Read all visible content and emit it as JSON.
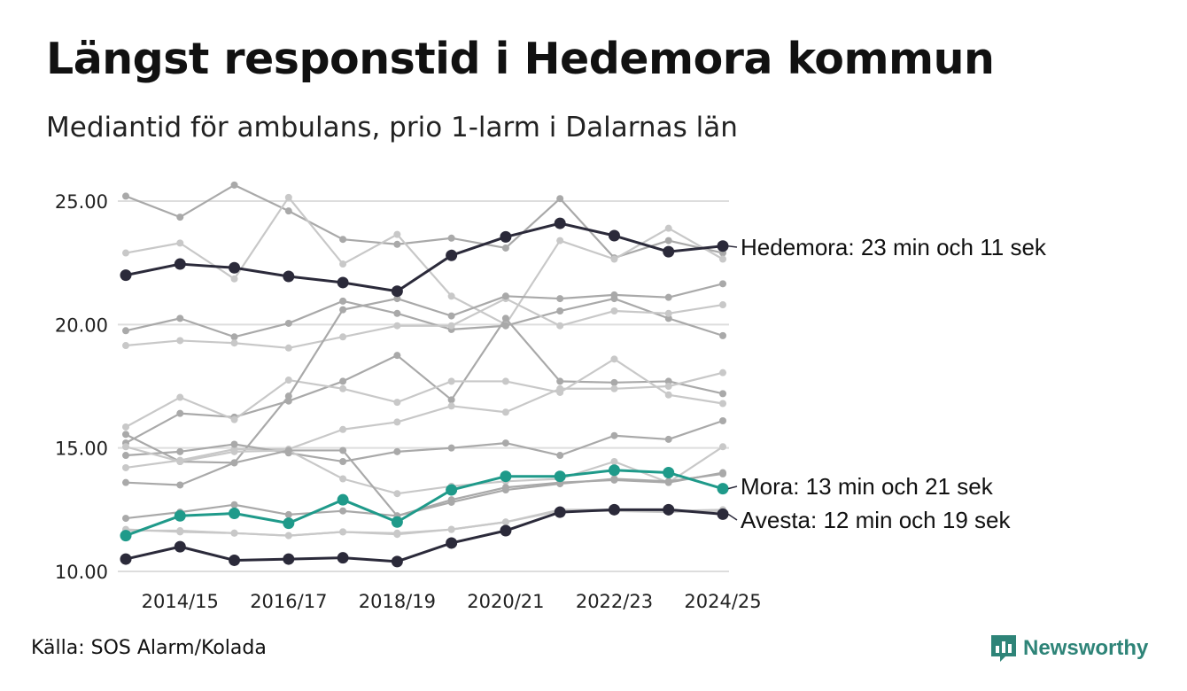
{
  "title": "Längst responstid i Hedemora kommun",
  "subtitle": "Mediantid för ambulans, prio 1-larm i Dalarnas län",
  "source": "Källa: SOS Alarm/Kolada",
  "brand": "Newsworthy",
  "colors": {
    "background": "#ffffff",
    "gridline": "#dddddd",
    "context_dark": "#a9a9a9",
    "context_light": "#c8c8c8",
    "hedemora": "#2b2a3a",
    "mora": "#1f9a8a",
    "avesta": "#2b2a3a",
    "brand": "#2e8478"
  },
  "chart_data": {
    "type": "line",
    "title": "Längst responstid i Hedemora kommun",
    "subtitle": "Mediantid för ambulans, prio 1-larm i Dalarnas län",
    "xlabel": "",
    "ylabel": "",
    "ylim": [
      10,
      25.5
    ],
    "yticks": [
      10,
      15,
      20,
      25
    ],
    "ytick_labels": [
      "10.00",
      "15.00",
      "20.00",
      "25.00"
    ],
    "grid": true,
    "x": [
      "2013/14",
      "2014/15",
      "2015/16",
      "2016/17",
      "2017/18",
      "2018/19",
      "2019/20",
      "2020/21",
      "2021/22",
      "2022/23",
      "2023/24",
      "2024/25"
    ],
    "xtick_labels": [
      "2014/15",
      "2016/17",
      "2018/19",
      "2020/21",
      "2022/23",
      "2024/25"
    ],
    "highlight_series": [
      {
        "name": "Hedemora",
        "label": "Hedemora: 23 min och 11 sek",
        "color": "#2b2a3a",
        "values": [
          22.0,
          22.45,
          22.3,
          21.95,
          21.7,
          21.35,
          22.8,
          23.55,
          24.1,
          23.6,
          22.95,
          23.18
        ]
      },
      {
        "name": "Mora",
        "label": "Mora: 13 min och 21 sek",
        "color": "#1f9a8a",
        "values": [
          11.45,
          12.25,
          12.35,
          11.95,
          12.9,
          12.0,
          13.3,
          13.85,
          13.85,
          14.1,
          14.0,
          13.35
        ]
      },
      {
        "name": "Avesta",
        "label": "Avesta: 12 min och 19 sek",
        "color": "#2b2a3a",
        "values": [
          10.5,
          11.0,
          10.45,
          10.5,
          10.55,
          10.4,
          11.15,
          11.65,
          12.4,
          12.5,
          12.5,
          12.32
        ]
      }
    ],
    "context_series": [
      {
        "color": "#a9a9a9",
        "values": [
          25.2,
          24.35,
          25.65,
          24.6,
          23.45,
          23.25,
          23.5,
          23.1,
          25.1,
          22.7,
          23.4,
          22.9
        ]
      },
      {
        "color": "#c8c8c8",
        "values": [
          22.9,
          23.3,
          21.85,
          25.15,
          22.45,
          23.65,
          21.15,
          20.0,
          23.4,
          22.65,
          23.9,
          22.65
        ]
      },
      {
        "color": "#a9a9a9",
        "values": [
          19.75,
          20.25,
          19.5,
          20.05,
          20.95,
          20.45,
          19.8,
          19.95,
          20.55,
          21.05,
          20.25,
          19.55
        ]
      },
      {
        "color": "#c8c8c8",
        "values": [
          19.15,
          19.35,
          19.25,
          19.05,
          19.5,
          19.95,
          19.95,
          21.05,
          19.95,
          20.55,
          20.45,
          20.8
        ]
      },
      {
        "color": "#a9a9a9",
        "values": [
          15.2,
          16.4,
          16.25,
          16.9,
          17.7,
          18.75,
          16.95,
          20.25,
          17.7,
          17.65,
          17.7,
          17.2
        ]
      },
      {
        "color": "#c8c8c8",
        "values": [
          15.85,
          17.05,
          16.15,
          17.75,
          17.4,
          16.85,
          17.7,
          17.7,
          17.25,
          18.6,
          17.15,
          16.8
        ]
      },
      {
        "color": "#a9a9a9",
        "values": [
          15.55,
          14.45,
          14.4,
          17.1,
          20.6,
          21.05,
          20.35,
          21.15,
          21.05,
          21.2,
          21.1,
          21.65
        ]
      },
      {
        "color": "#c8c8c8",
        "values": [
          14.2,
          14.5,
          14.95,
          14.95,
          15.75,
          16.05,
          16.7,
          16.45,
          17.4,
          17.4,
          17.5,
          18.05
        ]
      },
      {
        "color": "#a9a9a9",
        "values": [
          14.7,
          14.85,
          15.15,
          14.8,
          14.45,
          14.85,
          15.0,
          15.2,
          14.7,
          15.5,
          15.35,
          16.1
        ]
      },
      {
        "color": "#c8c8c8",
        "values": [
          15.05,
          14.45,
          14.85,
          14.9,
          13.75,
          13.15,
          13.45,
          13.65,
          13.75,
          14.45,
          13.6,
          15.05
        ]
      },
      {
        "color": "#a9a9a9",
        "values": [
          13.6,
          13.5,
          14.4,
          14.9,
          14.9,
          12.25,
          12.9,
          13.4,
          13.6,
          13.7,
          13.6,
          14.0
        ]
      },
      {
        "color": "#a9a9a9",
        "values": [
          12.15,
          12.4,
          12.7,
          12.3,
          12.45,
          12.25,
          12.8,
          13.3,
          13.55,
          13.75,
          13.65,
          13.95
        ]
      },
      {
        "color": "#c8c8c8",
        "values": [
          11.65,
          11.65,
          11.55,
          11.45,
          11.6,
          11.55,
          11.7,
          12.0,
          12.45,
          12.45,
          12.4,
          12.45
        ]
      },
      {
        "color": "#c8c8c8",
        "values": [
          11.7,
          11.6,
          11.55,
          11.45,
          11.6,
          11.5,
          11.7,
          12.0,
          12.5,
          12.5,
          12.45,
          12.5
        ]
      }
    ]
  }
}
